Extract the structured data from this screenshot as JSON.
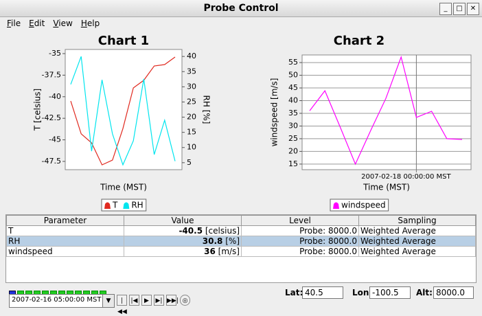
{
  "window": {
    "title": "Probe Control"
  },
  "menu": [
    "File",
    "Edit",
    "View",
    "Help"
  ],
  "chart_data": [
    {
      "type": "line",
      "title": "Chart 1",
      "xlabel": "Time (MST)",
      "ylabel": "T [celsius]",
      "y2label": "RH [%]",
      "series": [
        {
          "name": "T",
          "color": "#e0291f",
          "values": [
            -40.5,
            -44.3,
            -45.35,
            -47.9,
            -47.35,
            -43.7,
            -38.98,
            -38.1,
            -36.43,
            -36.27,
            -35.4
          ]
        },
        {
          "name": "RH",
          "color": "#00e5ee",
          "axis": "y2",
          "values": [
            30.8,
            40,
            8.8,
            32.3,
            14.5,
            4.3,
            12.2,
            32.6,
            7.7,
            19,
            5.5
          ]
        }
      ],
      "ylim": [
        -48.46,
        -34.52
      ],
      "yticks": [
        -35,
        -37.5,
        -40,
        -42.5,
        -45,
        -47.5
      ],
      "y2lim": [
        2.7,
        42.3
      ],
      "y2ticks": [
        5,
        10,
        15,
        20,
        25,
        30,
        35,
        40
      ],
      "grid": false
    },
    {
      "type": "line",
      "title": "Chart 2",
      "xlabel": "Time (MST)",
      "ylabel": "windspeed [m/s]",
      "categories": [
        null,
        null,
        null,
        null,
        null,
        null,
        null,
        "2007-02-18 00:00:00 MST",
        null,
        null,
        null
      ],
      "series": [
        {
          "name": "windspeed",
          "color": "#ff00ff",
          "values": [
            36,
            43.9,
            29.6,
            15,
            28.2,
            40.9,
            57.2,
            33.4,
            35.8,
            25,
            24.7
          ]
        }
      ],
      "ylim": [
        12.8,
        58
      ],
      "yticks": [
        15,
        20,
        25,
        30,
        35,
        40,
        45,
        50,
        55
      ],
      "grid": true
    }
  ],
  "table": {
    "header": [
      "Parameter",
      "Value",
      "Level",
      "Sampling"
    ],
    "rows": [
      {
        "parameter": "T",
        "value": "-40.5",
        "unit": "[celsius]",
        "level": "Probe: 8000.0",
        "sampling": "Weighted Average"
      },
      {
        "parameter": "RH",
        "value": "30.8",
        "unit": "[%]",
        "level": "Probe: 8000.0",
        "sampling": "Weighted Average"
      },
      {
        "parameter": "windspeed",
        "value": "36",
        "unit": "[m/s]",
        "level": "Probe: 8000.0",
        "sampling": "Weighted Average"
      }
    ]
  },
  "time": "2007-02-16 05:00:00 MST",
  "position": {
    "lat_label": "Lat:",
    "lat": "40.5",
    "lon_label": "Lon:",
    "lon": "-100.5",
    "alt_label": "Alt:",
    "alt": "8000.0"
  }
}
